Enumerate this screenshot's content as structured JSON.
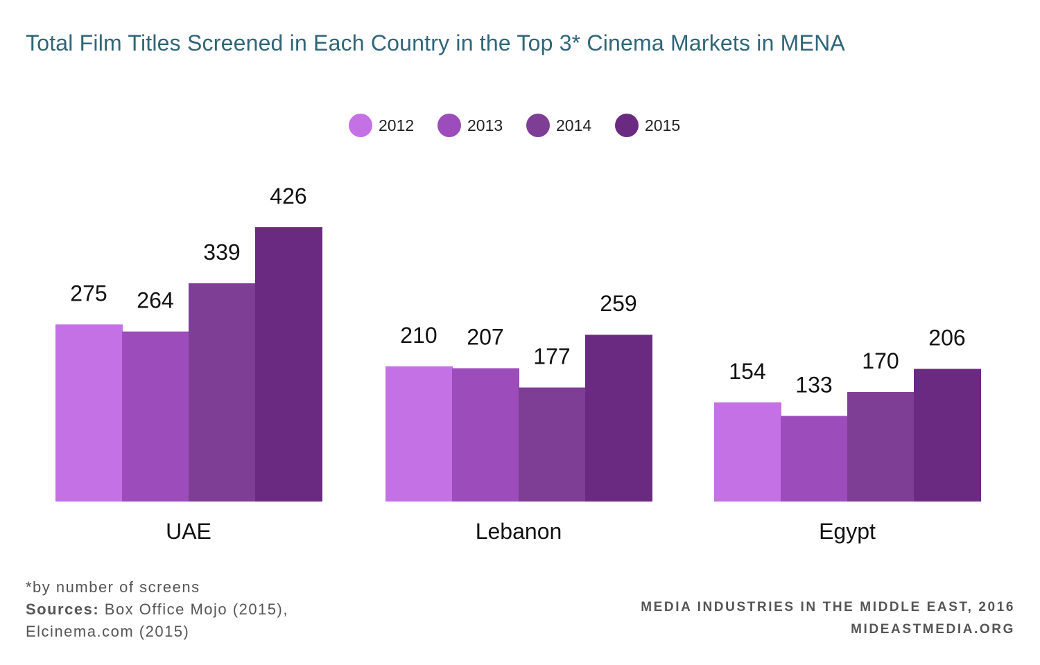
{
  "title": "Total Film Titles Screened in Each Country in the Top 3* Cinema Markets in MENA",
  "footnote": {
    "note": "*by number of screens",
    "sources_key": "Sources:",
    "sources_line1": " Box Office Mojo (2015),",
    "sources_line2": "Elcinema.com (2015)"
  },
  "credit": {
    "line1": "MEDIA INDUSTRIES IN THE MIDDLE EAST, 2016",
    "line2": "MIDEASTMEDIA.ORG"
  },
  "chart_data": {
    "type": "bar",
    "title": "Total Film Titles Screened in Each Country in the Top 3* Cinema Markets in MENA",
    "categories": [
      "UAE",
      "Lebanon",
      "Egypt"
    ],
    "series": [
      {
        "name": "2012",
        "color": "#c471e5",
        "values": [
          275,
          210,
          154
        ]
      },
      {
        "name": "2013",
        "color": "#9c4cbb",
        "values": [
          264,
          207,
          133
        ]
      },
      {
        "name": "2014",
        "color": "#7e3e96",
        "values": [
          339,
          177,
          170
        ]
      },
      {
        "name": "2015",
        "color": "#6a2a82",
        "values": [
          426,
          259,
          206
        ]
      }
    ],
    "xlabel": "",
    "ylabel": "",
    "ylim": [
      0,
      426
    ],
    "grid": false,
    "legend": "top-center",
    "data_labels": true
  }
}
